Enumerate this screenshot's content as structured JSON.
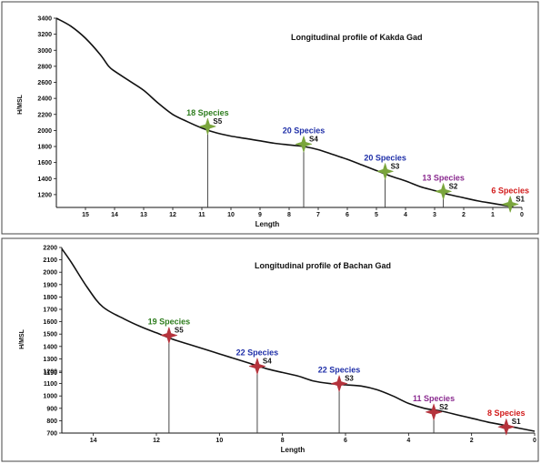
{
  "chart_data": [
    {
      "type": "line",
      "title": "Longitudinal profile of Kakda Gad",
      "xlabel": "Length",
      "ylabel": "H/MSL",
      "x_ticks": [
        "15",
        "14",
        "13",
        "12",
        "11",
        "10",
        "9",
        "8",
        "7",
        "6",
        "5",
        "4",
        "3",
        "2",
        "1",
        "0"
      ],
      "y_ticks": [
        "1200",
        "1400",
        "1600",
        "1800",
        "2000",
        "2200",
        "2400",
        "2600",
        "2800",
        "3000",
        "3200",
        "3400"
      ],
      "xlim": [
        16,
        0
      ],
      "ylim": [
        1040,
        3400
      ],
      "profile": {
        "x": [
          16,
          15.5,
          15,
          14.5,
          14.2,
          14,
          13.5,
          13,
          12.5,
          12,
          11.5,
          11,
          10.5,
          10,
          9.5,
          9,
          8.5,
          8,
          7.5,
          7,
          6.5,
          6,
          5.5,
          5,
          4.5,
          4,
          3.5,
          3,
          2.5,
          2,
          1.5,
          1,
          0.5,
          0.3
        ],
        "y": [
          3400,
          3300,
          3150,
          2950,
          2800,
          2740,
          2620,
          2500,
          2340,
          2200,
          2110,
          2030,
          1970,
          1930,
          1900,
          1870,
          1840,
          1820,
          1800,
          1760,
          1700,
          1640,
          1570,
          1500,
          1430,
          1370,
          1300,
          1250,
          1200,
          1160,
          1120,
          1090,
          1060,
          1050
        ]
      },
      "stations": [
        {
          "id": "S5",
          "x": 10.8,
          "y": 2050,
          "label": "18 Species",
          "color": "#2e7d1e"
        },
        {
          "id": "S4",
          "x": 7.5,
          "y": 1830,
          "label": "20 Species",
          "color": "#1f2fa8"
        },
        {
          "id": "S3",
          "x": 4.7,
          "y": 1490,
          "label": "20 Species",
          "color": "#1f2fa8"
        },
        {
          "id": "S2",
          "x": 2.7,
          "y": 1240,
          "label": "13 Species",
          "color": "#8a2a8f"
        },
        {
          "id": "S1",
          "x": 0.4,
          "y": 1080,
          "label": "6 Species",
          "color": "#d21b1b"
        }
      ],
      "marker_color": "#7aa53c"
    },
    {
      "type": "line",
      "title": "Longitudinal profile of Bachan Gad",
      "xlabel": "Length",
      "ylabel": "H/MSL",
      "x_ticks": [
        "14",
        "12",
        "10",
        "8",
        "6",
        "4",
        "2",
        "0"
      ],
      "y_ticks": [
        "700",
        "800",
        "900",
        "1000",
        "1100",
        "1190",
        "1200",
        "1300",
        "1400",
        "1500",
        "1600",
        "1700",
        "1800",
        "1900",
        "2000",
        "2100",
        "2200"
      ],
      "xlim": [
        15,
        0
      ],
      "ylim": [
        700,
        2200
      ],
      "profile": {
        "x": [
          15,
          14.7,
          14.2,
          13.7,
          13,
          12.5,
          12,
          11.5,
          11,
          10.5,
          10,
          9.5,
          9,
          8.5,
          8,
          7.5,
          7,
          6.5,
          6,
          5.5,
          5,
          4.5,
          4,
          3.5,
          3,
          2.5,
          2,
          1.5,
          1,
          0.5,
          0
        ],
        "y": [
          2190,
          2080,
          1880,
          1720,
          1620,
          1560,
          1510,
          1460,
          1420,
          1380,
          1340,
          1300,
          1260,
          1220,
          1190,
          1160,
          1120,
          1100,
          1090,
          1080,
          1050,
          1000,
          940,
          900,
          880,
          850,
          820,
          790,
          765,
          740,
          715
        ]
      },
      "stations": [
        {
          "id": "S5",
          "x": 11.6,
          "y": 1490,
          "label": "19 Species",
          "color": "#2e7d1e"
        },
        {
          "id": "S4",
          "x": 8.8,
          "y": 1240,
          "label": "22 Species",
          "color": "#1f2fa8"
        },
        {
          "id": "S3",
          "x": 6.2,
          "y": 1100,
          "label": "22 Species",
          "color": "#1f2fa8"
        },
        {
          "id": "S2",
          "x": 3.2,
          "y": 870,
          "label": "11 Species",
          "color": "#8a2a8f"
        },
        {
          "id": "S1",
          "x": 0.9,
          "y": 750,
          "label": "8 Species",
          "color": "#d21b1b"
        }
      ],
      "marker_color": "#b5333c"
    }
  ]
}
